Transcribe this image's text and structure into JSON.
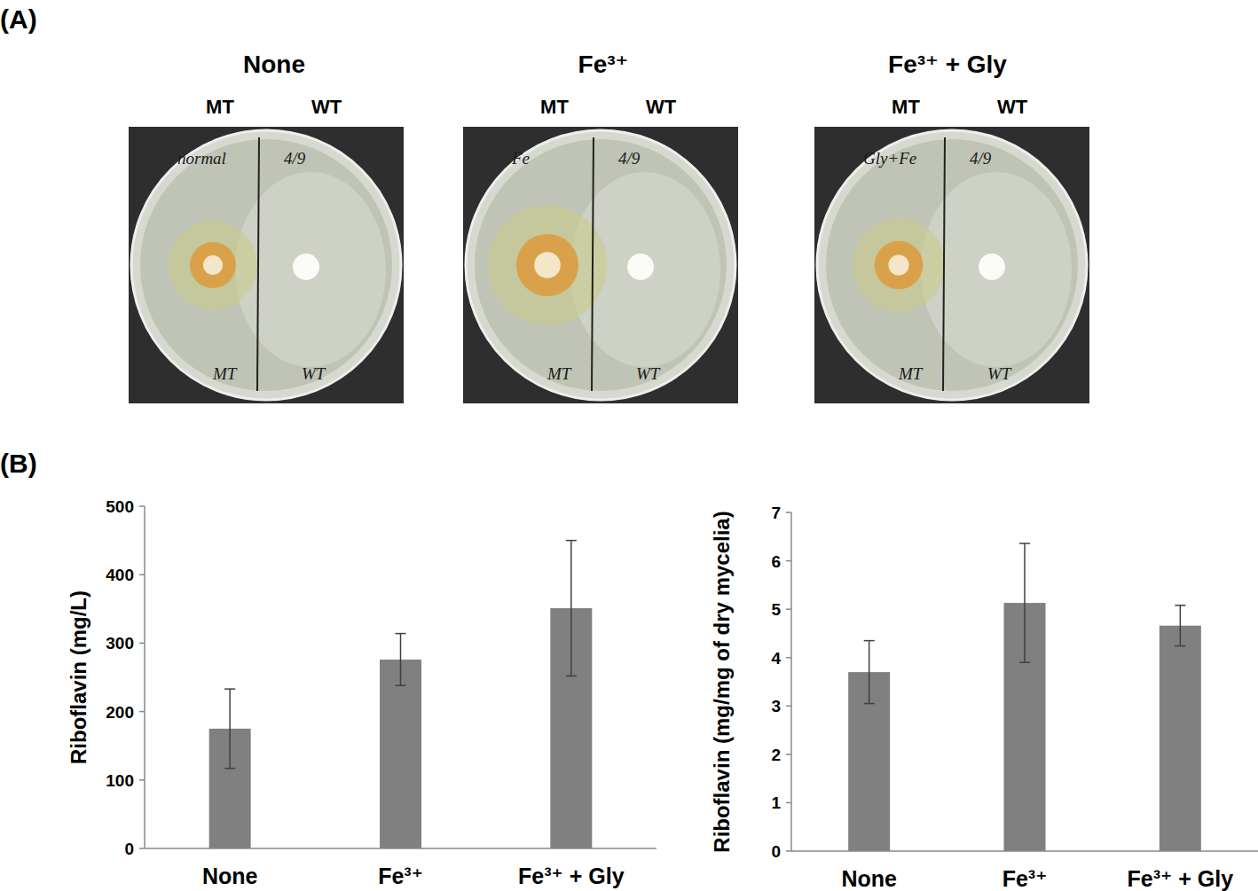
{
  "panel_labels": [
    "(A)",
    "(B)"
  ],
  "dishes": [
    {
      "title": "None",
      "left": "MT",
      "right": "WT",
      "notes": [
        "normal",
        "4/9",
        "MT",
        "WT"
      ]
    },
    {
      "title": "Fe³⁺",
      "left": "MT",
      "right": "WT",
      "notes": [
        "Fe",
        "4/9",
        "MT",
        "WT"
      ]
    },
    {
      "title": "Fe³⁺ + Gly",
      "left": "MT",
      "right": "WT",
      "notes": [
        "Gly+Fe",
        "4/9",
        "MT",
        "WT"
      ]
    }
  ],
  "chart_data": [
    {
      "type": "bar",
      "y_label": "Riboflavin (mg/L)",
      "categories": [
        "None",
        "Fe³⁺",
        "Fe³⁺ + Gly"
      ],
      "values": [
        175,
        276,
        351
      ],
      "errors": [
        58,
        38,
        99
      ],
      "color": "#808080",
      "ylim": [
        0,
        500
      ],
      "yticks": [
        0,
        100,
        200,
        300,
        400,
        500
      ],
      "grid": false
    },
    {
      "type": "bar",
      "y_label": "Riboflavin (mg/mg of dry mycelia)",
      "categories": [
        "None",
        "Fe³⁺",
        "Fe³⁺ + Gly"
      ],
      "values": [
        3.7,
        5.13,
        4.66
      ],
      "errors": [
        0.65,
        1.23,
        0.42
      ],
      "color": "#808080",
      "ylim": [
        0,
        7
      ],
      "yticks": [
        0,
        1,
        2,
        3,
        4,
        5,
        6,
        7
      ],
      "grid": false
    }
  ]
}
